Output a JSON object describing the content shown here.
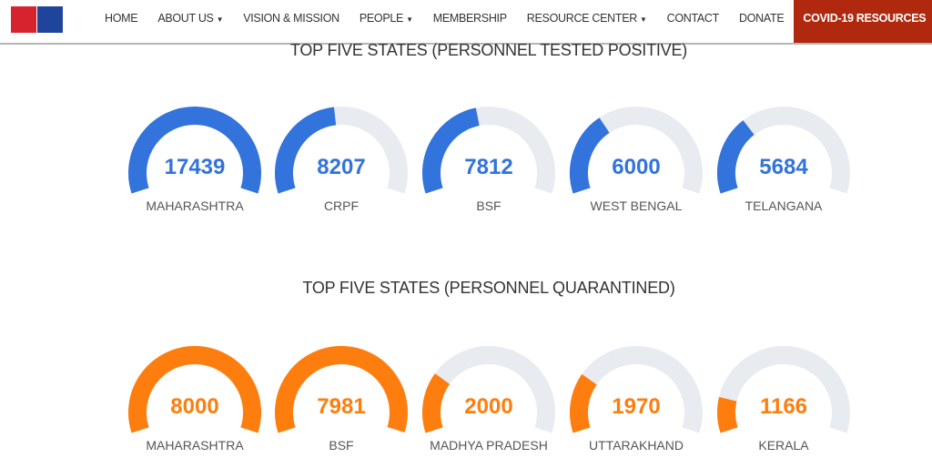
{
  "nav": {
    "items": [
      {
        "label": "HOME",
        "dropdown": false
      },
      {
        "label": "ABOUT US",
        "dropdown": true
      },
      {
        "label": "VISION & MISSION",
        "dropdown": false
      },
      {
        "label": "PEOPLE",
        "dropdown": true
      },
      {
        "label": "MEMBERSHIP",
        "dropdown": false
      },
      {
        "label": "RESOURCE CENTER",
        "dropdown": true
      },
      {
        "label": "CONTACT",
        "dropdown": false
      },
      {
        "label": "DONATE",
        "dropdown": false
      },
      {
        "label": "COVID-19 RESOURCES",
        "dropdown": false,
        "active": true
      }
    ],
    "caret": "▼"
  },
  "colors": {
    "positive": "#3273dc",
    "quarantined": "#fd7e0e",
    "track": "#e8ebf0",
    "active_nav": "#b0290e"
  },
  "sections": [
    {
      "title": "TOP FIVE STATES (PERSONNEL TESTED POSITIVE)",
      "color_key": "positive",
      "max": 17439,
      "gauges": [
        {
          "label": "MAHARASHTRA",
          "value": "17439",
          "num": 17439
        },
        {
          "label": "CRPF",
          "value": "8207",
          "num": 8207
        },
        {
          "label": "BSF",
          "value": "7812",
          "num": 7812
        },
        {
          "label": "WEST BENGAL",
          "value": "6000",
          "num": 6000
        },
        {
          "label": "TELANGANA",
          "value": "5684",
          "num": 5684
        }
      ]
    },
    {
      "title": "TOP FIVE STATES (PERSONNEL QUARANTINED)",
      "color_key": "quarantined",
      "max": 8000,
      "gauges": [
        {
          "label": "MAHARASHTRA",
          "value": "8000",
          "num": 8000
        },
        {
          "label": "BSF",
          "value": "7981",
          "num": 7981
        },
        {
          "label": "MADHYA PRADESH",
          "value": "2000",
          "num": 2000
        },
        {
          "label": "UTTARAKHAND",
          "value": "1970",
          "num": 1970
        },
        {
          "label": "KERALA",
          "value": "1166",
          "num": 1166
        }
      ]
    }
  ]
}
